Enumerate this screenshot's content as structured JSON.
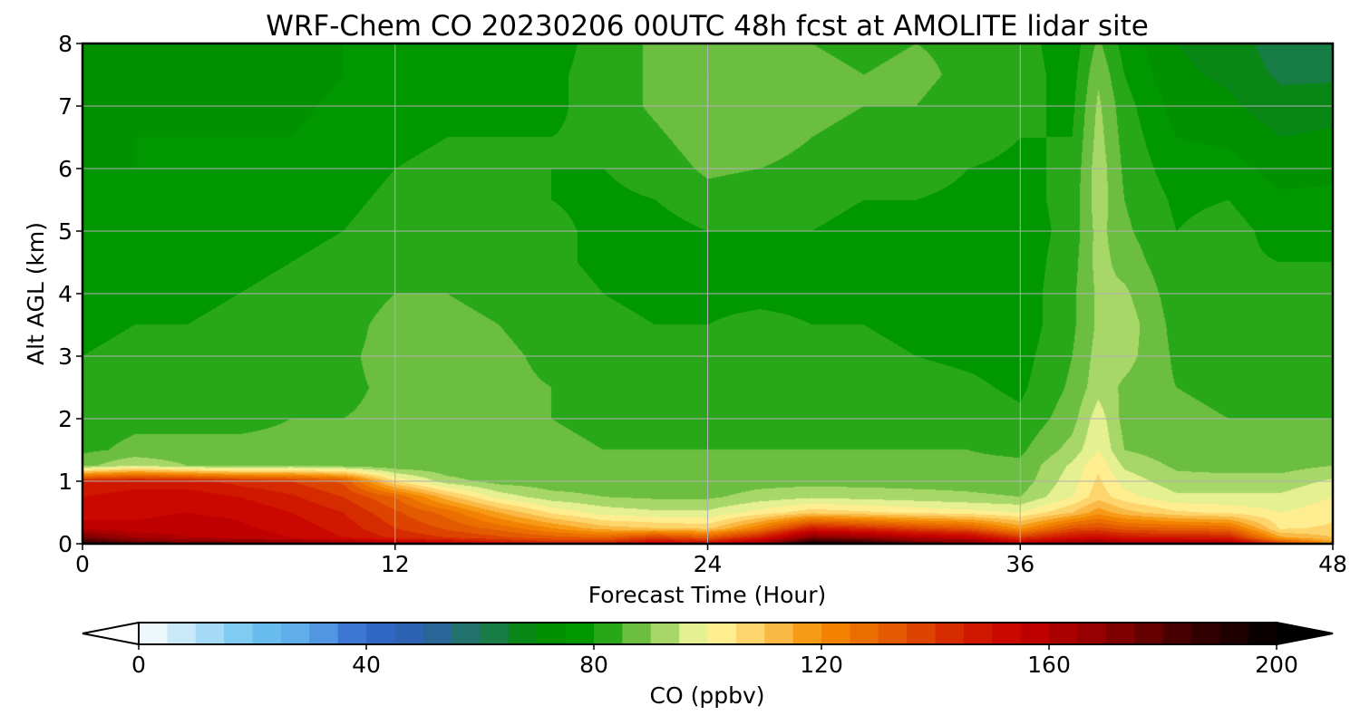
{
  "chart_data": {
    "type": "heatmap",
    "title": "WRF-Chem CO  20230206 00UTC 48h fcst at AMOLITE lidar site",
    "xlabel": "Forecast Time (Hour)",
    "ylabel": "Alt AGL (km)",
    "xlim": [
      0,
      48
    ],
    "ylim": [
      0,
      8
    ],
    "x_ticks": [
      "0",
      "12",
      "24",
      "36",
      "48"
    ],
    "y_ticks": [
      "0",
      "1",
      "2",
      "3",
      "4",
      "5",
      "6",
      "7",
      "8"
    ],
    "grid": true,
    "x_hours": [
      0,
      2,
      4,
      6,
      8,
      10,
      12,
      14,
      16,
      18,
      20,
      22,
      24,
      26,
      28,
      30,
      32,
      34,
      36,
      38,
      39,
      40,
      42,
      44,
      46,
      48
    ],
    "z_levels_km": [
      0.0,
      0.1,
      0.25,
      0.5,
      0.75,
      1.0,
      1.25,
      1.5,
      2.0,
      2.5,
      3.0,
      3.5,
      4.0,
      4.5,
      5.0,
      5.5,
      6.0,
      6.5,
      7.0,
      7.5,
      8.0
    ],
    "co_ppbv_profiles": [
      [
        190,
        175,
        158,
        152,
        150,
        146,
        88,
        84,
        83,
        81,
        80,
        79,
        78,
        77,
        76,
        75,
        75,
        74,
        73,
        73,
        72
      ],
      [
        180,
        165,
        156,
        154,
        152,
        148,
        95,
        86,
        84,
        82,
        81,
        80,
        79,
        78,
        77,
        76,
        75,
        75,
        74,
        73,
        73
      ],
      [
        178,
        160,
        157,
        155,
        153,
        147,
        90,
        86,
        84,
        82,
        81,
        80,
        79,
        78,
        77,
        76,
        75,
        75,
        74,
        73,
        72
      ],
      [
        176,
        158,
        156,
        154,
        150,
        143,
        88,
        86,
        84,
        82,
        82,
        81,
        80,
        79,
        78,
        77,
        76,
        75,
        74,
        73,
        72
      ],
      [
        172,
        155,
        153,
        150,
        146,
        140,
        90,
        86,
        85,
        84,
        83,
        82,
        81,
        80,
        79,
        78,
        76,
        75,
        74,
        73,
        72
      ],
      [
        168,
        150,
        148,
        145,
        140,
        134,
        88,
        86,
        85,
        84,
        84,
        83,
        82,
        81,
        80,
        79,
        78,
        77,
        76,
        75,
        75
      ],
      [
        162,
        144,
        140,
        136,
        130,
        105,
        86,
        86,
        86,
        86,
        87,
        87,
        85,
        83,
        82,
        81,
        80,
        79,
        78,
        77,
        76
      ],
      [
        156,
        140,
        134,
        128,
        112,
        92,
        86,
        86,
        86,
        87,
        87,
        86,
        85,
        84,
        83,
        82,
        81,
        80,
        79,
        78,
        77
      ],
      [
        150,
        136,
        128,
        115,
        98,
        88,
        86,
        86,
        86,
        86,
        86,
        85,
        84,
        83,
        82,
        81,
        81,
        80,
        79,
        78,
        78
      ],
      [
        146,
        132,
        120,
        104,
        92,
        87,
        86,
        86,
        85,
        85,
        84,
        83,
        82,
        81,
        81,
        80,
        80,
        80,
        79,
        79,
        78
      ],
      [
        146,
        130,
        112,
        98,
        90,
        87,
        86,
        85,
        84,
        83,
        82,
        81,
        80,
        79,
        79,
        79,
        80,
        81,
        82,
        82,
        82
      ],
      [
        156,
        138,
        110,
        96,
        89,
        87,
        86,
        85,
        84,
        82,
        81,
        80,
        79,
        78,
        78,
        80,
        82,
        84,
        86,
        86,
        86
      ],
      [
        152,
        132,
        108,
        96,
        89,
        87,
        86,
        85,
        84,
        83,
        82,
        80,
        79,
        79,
        80,
        83,
        86,
        88,
        90,
        90,
        88
      ],
      [
        168,
        146,
        124,
        102,
        92,
        88,
        86,
        85,
        84,
        83,
        82,
        81,
        79,
        79,
        80,
        82,
        85,
        88,
        89,
        89,
        87
      ],
      [
        196,
        172,
        146,
        108,
        94,
        88,
        86,
        85,
        84,
        83,
        82,
        80,
        79,
        79,
        80,
        81,
        83,
        85,
        86,
        86,
        85
      ],
      [
        192,
        168,
        142,
        106,
        93,
        88,
        86,
        85,
        84,
        83,
        81,
        80,
        79,
        78,
        79,
        80,
        82,
        84,
        85,
        85,
        84
      ],
      [
        180,
        160,
        136,
        104,
        92,
        88,
        86,
        85,
        84,
        82,
        80,
        79,
        78,
        78,
        79,
        80,
        82,
        84,
        85,
        86,
        85
      ],
      [
        174,
        156,
        132,
        102,
        91,
        88,
        86,
        85,
        83,
        81,
        79,
        78,
        77,
        77,
        78,
        79,
        80,
        82,
        83,
        84,
        84
      ],
      [
        158,
        140,
        118,
        100,
        90,
        87,
        86,
        84,
        81,
        79,
        78,
        77,
        77,
        77,
        77,
        78,
        79,
        80,
        81,
        82,
        82
      ],
      [
        168,
        150,
        134,
        110,
        100,
        98,
        96,
        92,
        88,
        86,
        85,
        84,
        84,
        83,
        82,
        82,
        81,
        80,
        79,
        78,
        77
      ],
      [
        170,
        152,
        136,
        118,
        108,
        106,
        104,
        100,
        98,
        93,
        92,
        91,
        91,
        92,
        92,
        93,
        93,
        92,
        91,
        89,
        86
      ],
      [
        166,
        148,
        132,
        112,
        102,
        98,
        94,
        90,
        88,
        89,
        92,
        93,
        91,
        88,
        86,
        85,
        84,
        83,
        82,
        80,
        78
      ],
      [
        166,
        146,
        130,
        106,
        96,
        92,
        89,
        87,
        86,
        85,
        84,
        83,
        82,
        81,
        80,
        79,
        77,
        75,
        73,
        71,
        70
      ],
      [
        164,
        146,
        128,
        104,
        96,
        92,
        88,
        86,
        85,
        84,
        84,
        83,
        82,
        81,
        82,
        80,
        77,
        74,
        71,
        69,
        68
      ],
      [
        140,
        116,
        104,
        100,
        96,
        92,
        88,
        86,
        85,
        84,
        84,
        83,
        82,
        80,
        78,
        76,
        73,
        70,
        67,
        64,
        62
      ],
      [
        118,
        110,
        106,
        103,
        100,
        96,
        90,
        86,
        85,
        84,
        84,
        83,
        82,
        80,
        78,
        76,
        74,
        71,
        68,
        64,
        62
      ]
    ]
  },
  "colorbar": {
    "label": "CO  (ppbv)",
    "min": 0,
    "max": 200,
    "step": 5,
    "ticks": [
      "0",
      "40",
      "80",
      "120",
      "160",
      "200"
    ],
    "extend": "both"
  }
}
